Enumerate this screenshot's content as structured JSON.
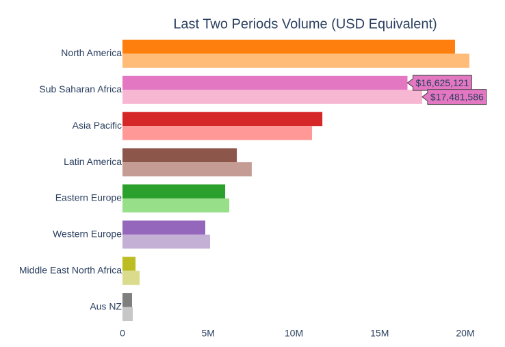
{
  "chart_data": {
    "type": "bar",
    "orientation": "horizontal",
    "title": "Last Two Periods Volume (USD Equivalent)",
    "categories": [
      "North America",
      "Sub Saharan Africa",
      "Asia Pacific",
      "Latin America",
      "Eastern Europe",
      "Western Europe",
      "Middle East North Africa",
      "Aus NZ"
    ],
    "series": [
      {
        "colors": [
          "#ff7f0e",
          "#e377c2",
          "#d62728",
          "#8c564b",
          "#2ca02c",
          "#9467bd",
          "#bcbd22",
          "#7f7f7f"
        ],
        "values": [
          19400000,
          16625121,
          11660000,
          6670000,
          5990000,
          4830000,
          760000,
          560000
        ],
        "value_labels": [
          null,
          "$16,625,121",
          null,
          null,
          null,
          null,
          null,
          null
        ]
      },
      {
        "colors": [
          "#ffbb78",
          "#f7b6d2",
          "#ff9896",
          "#c49c94",
          "#98df8a",
          "#c5b0d5",
          "#dbdb8d",
          "#c7c7c7"
        ],
        "values": [
          20240000,
          17481586,
          11060000,
          7540000,
          6230000,
          5110000,
          1000000,
          600000
        ],
        "value_labels": [
          null,
          "$17,481,586",
          null,
          null,
          null,
          null,
          null,
          null
        ]
      }
    ],
    "xlim": [
      0,
      21000000
    ],
    "xticks": [
      0,
      {
        "value": 5000000,
        "label": "5M"
      },
      {
        "value": 10000000,
        "label": "10M"
      },
      {
        "value": 15000000,
        "label": "15M"
      },
      {
        "value": 20000000,
        "label": "20M"
      }
    ]
  }
}
